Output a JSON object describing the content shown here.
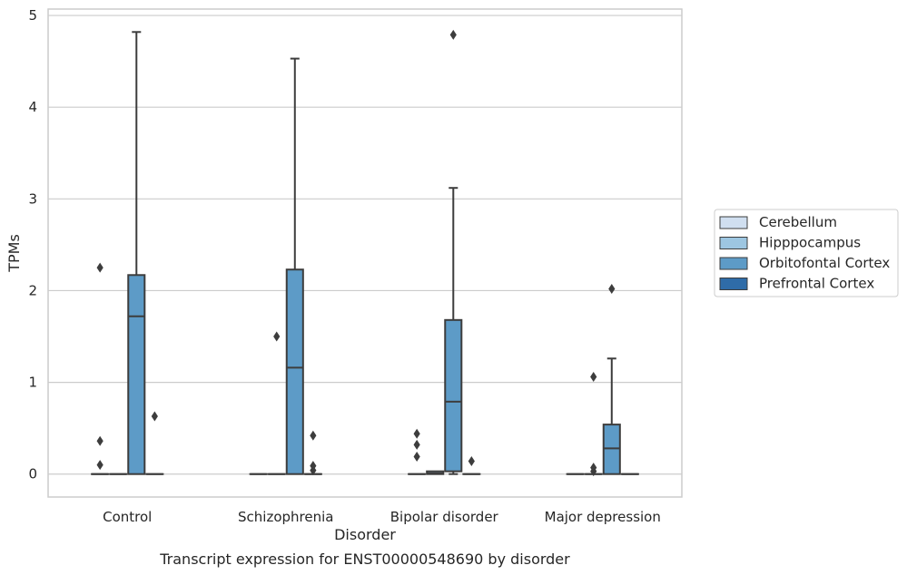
{
  "chart_data": {
    "type": "box",
    "xlabel": "Disorder",
    "ylabel": "TPMs",
    "caption": "Transcript expression for ENST00000548690 by disorder",
    "ylim": [
      -0.25,
      5.07
    ],
    "yticks": [
      0,
      1,
      2,
      3,
      4,
      5
    ],
    "grid": "horizontal",
    "legend_position": "right",
    "categories": [
      "Control",
      "Schizophrenia",
      "Bipolar disorder",
      "Major depression"
    ],
    "series": [
      {
        "name": "Cerebellum",
        "color": "#d0dff0",
        "boxes": [
          {
            "q1": 0,
            "median": 0,
            "q3": 0,
            "whisker_low": 0,
            "whisker_high": 0,
            "outliers": [
              0.1,
              0.36,
              2.25
            ]
          },
          {
            "q1": 0,
            "median": 0,
            "q3": 0,
            "whisker_low": 0,
            "whisker_high": 0,
            "outliers": []
          },
          {
            "q1": 0,
            "median": 0,
            "q3": 0,
            "whisker_low": 0,
            "whisker_high": 0,
            "outliers": [
              0.19,
              0.32,
              0.44
            ]
          },
          {
            "q1": 0,
            "median": 0,
            "q3": 0,
            "whisker_low": 0,
            "whisker_high": 0,
            "outliers": []
          }
        ]
      },
      {
        "name": "Hipppocampus",
        "color": "#9dc6e1",
        "boxes": [
          {
            "q1": 0,
            "median": 0,
            "q3": 0,
            "whisker_low": 0,
            "whisker_high": 0,
            "outliers": []
          },
          {
            "q1": 0,
            "median": 0,
            "q3": 0,
            "whisker_low": 0,
            "whisker_high": 0,
            "outliers": [
              1.5
            ]
          },
          {
            "q1": 0,
            "median": 0.01,
            "q3": 0.03,
            "whisker_low": 0,
            "whisker_high": 0.03,
            "outliers": []
          },
          {
            "q1": 0,
            "median": 0,
            "q3": 0,
            "whisker_low": 0,
            "whisker_high": 0,
            "outliers": [
              0.03,
              0.07,
              1.06
            ]
          }
        ]
      },
      {
        "name": "Orbitofontal Cortex",
        "color": "#5d9bc7",
        "boxes": [
          {
            "q1": 0,
            "median": 1.72,
            "q3": 2.17,
            "whisker_low": 0,
            "whisker_high": 4.82,
            "outliers": []
          },
          {
            "q1": 0,
            "median": 1.16,
            "q3": 2.23,
            "whisker_low": 0,
            "whisker_high": 4.53,
            "outliers": []
          },
          {
            "q1": 0.03,
            "median": 0.79,
            "q3": 1.68,
            "whisker_low": 0,
            "whisker_high": 3.12,
            "outliers": [
              4.79
            ]
          },
          {
            "q1": 0,
            "median": 0.28,
            "q3": 0.54,
            "whisker_low": 0,
            "whisker_high": 1.26,
            "outliers": [
              2.02
            ]
          }
        ]
      },
      {
        "name": "Prefrontal Cortex",
        "color": "#2f6ca8",
        "boxes": [
          {
            "q1": 0,
            "median": 0,
            "q3": 0,
            "whisker_low": 0,
            "whisker_high": 0,
            "outliers": [
              0.63
            ]
          },
          {
            "q1": 0,
            "median": 0,
            "q3": 0,
            "whisker_low": 0,
            "whisker_high": 0,
            "outliers": [
              0.04,
              0.09,
              0.42
            ]
          },
          {
            "q1": 0,
            "median": 0,
            "q3": 0,
            "whisker_low": 0,
            "whisker_high": 0,
            "outliers": [
              0.14
            ]
          },
          {
            "q1": 0,
            "median": 0,
            "q3": 0,
            "whisker_low": 0,
            "whisker_high": 0,
            "outliers": []
          }
        ]
      }
    ]
  }
}
